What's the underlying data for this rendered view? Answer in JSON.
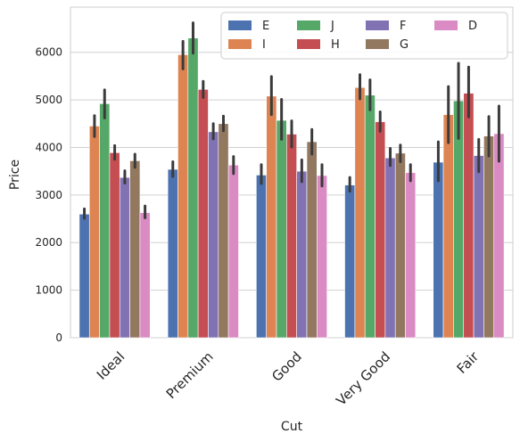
{
  "chart_data": {
    "type": "bar",
    "title": "",
    "xlabel": "Cut",
    "ylabel": "Price",
    "categories": [
      "Ideal",
      "Premium",
      "Good",
      "Very Good",
      "Fair"
    ],
    "ylim": [
      0,
      6950
    ],
    "yticks": [
      0,
      1000,
      2000,
      3000,
      4000,
      5000,
      6000
    ],
    "grid": "horizontal",
    "legend_position": "top-right",
    "error_bars": true,
    "series": [
      {
        "name": "E",
        "color": "#4c72b0",
        "values": [
          2600,
          3540,
          3420,
          3210,
          3690
        ],
        "ci": [
          [
            2510,
            2710
          ],
          [
            3390,
            3700
          ],
          [
            3240,
            3640
          ],
          [
            3080,
            3370
          ],
          [
            3300,
            4120
          ]
        ]
      },
      {
        "name": "I",
        "color": "#dd8452",
        "values": [
          4450,
          5950,
          5080,
          5260,
          4690
        ],
        "ci": [
          [
            4230,
            4670
          ],
          [
            5650,
            6230
          ],
          [
            4690,
            5490
          ],
          [
            5020,
            5530
          ],
          [
            4100,
            5280
          ]
        ]
      },
      {
        "name": "J",
        "color": "#55a868",
        "values": [
          4920,
          6300,
          4570,
          5100,
          4980
        ],
        "ci": [
          [
            4620,
            5210
          ],
          [
            5980,
            6620
          ],
          [
            4170,
            5010
          ],
          [
            4790,
            5420
          ],
          [
            4190,
            5770
          ]
        ]
      },
      {
        "name": "H",
        "color": "#c44e52",
        "values": [
          3890,
          5220,
          4280,
          4540,
          5140
        ],
        "ci": [
          [
            3750,
            4040
          ],
          [
            5050,
            5390
          ],
          [
            4010,
            4560
          ],
          [
            4340,
            4750
          ],
          [
            4640,
            5690
          ]
        ]
      },
      {
        "name": "F",
        "color": "#8172b3",
        "values": [
          3370,
          4330,
          3500,
          3780,
          3830
        ],
        "ci": [
          [
            3250,
            3510
          ],
          [
            4180,
            4500
          ],
          [
            3280,
            3740
          ],
          [
            3620,
            3980
          ],
          [
            3490,
            4170
          ]
        ]
      },
      {
        "name": "G",
        "color": "#937860",
        "values": [
          3720,
          4500,
          4120,
          3880,
          4240
        ],
        "ci": [
          [
            3580,
            3860
          ],
          [
            4350,
            4660
          ],
          [
            3860,
            4380
          ],
          [
            3700,
            4050
          ],
          [
            3820,
            4650
          ]
        ]
      },
      {
        "name": "D",
        "color": "#da8bc3",
        "values": [
          2630,
          3630,
          3410,
          3470,
          4290
        ],
        "ci": [
          [
            2520,
            2770
          ],
          [
            3450,
            3810
          ],
          [
            3190,
            3640
          ],
          [
            3300,
            3640
          ],
          [
            3710,
            4870
          ]
        ]
      }
    ]
  }
}
